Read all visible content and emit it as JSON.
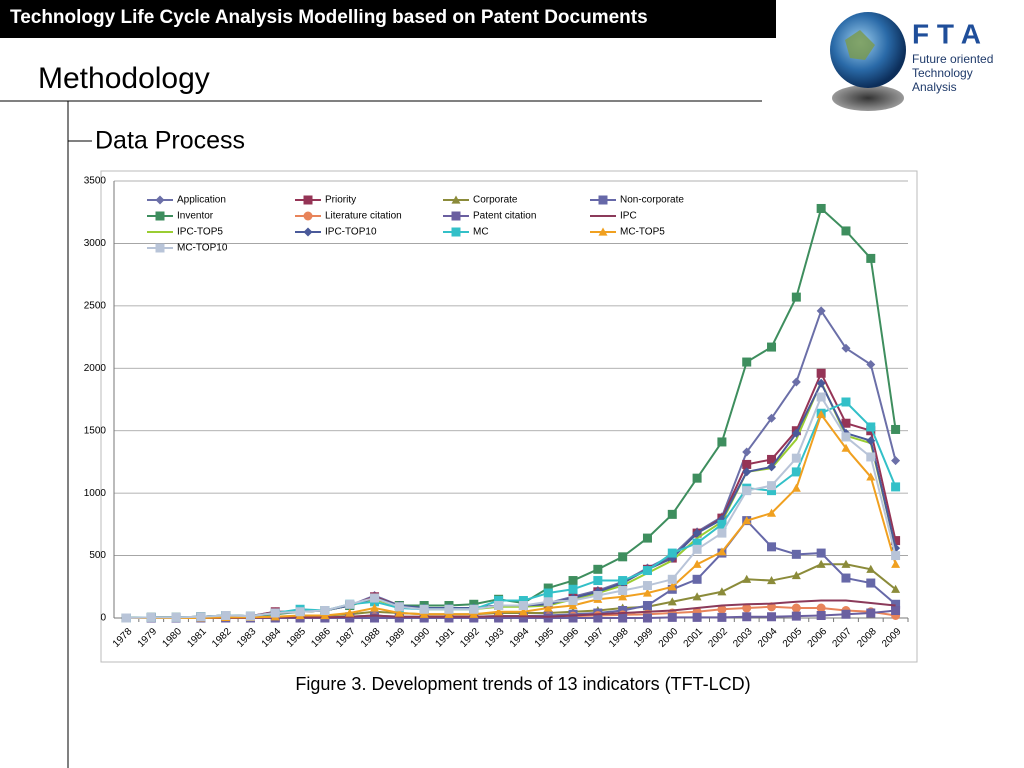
{
  "header": {
    "title": "Technology Life Cycle Analysis Modelling based on Patent Documents",
    "section": "Methodology",
    "subsection": "Data Process"
  },
  "logo": {
    "acronym": "F T A",
    "lines": [
      "Future oriented",
      "Technology",
      "Analysis"
    ]
  },
  "caption": "Figure 3. Development trends of 13 indicators (TFT-LCD)",
  "chart_data": {
    "type": "line",
    "grid": true,
    "legend": "top",
    "categories": [
      "1978",
      "1979",
      "1980",
      "1981",
      "1982",
      "1983",
      "1984",
      "1985",
      "1986",
      "1987",
      "1988",
      "1989",
      "1990",
      "1991",
      "1992",
      "1993",
      "1994",
      "1995",
      "1996",
      "1997",
      "1998",
      "1999",
      "2000",
      "2001",
      "2002",
      "2003",
      "2004",
      "2005",
      "2006",
      "2007",
      "2008",
      "2009"
    ],
    "ylim": [
      0,
      3500
    ],
    "yticks": [
      0,
      500,
      1000,
      1500,
      2000,
      2500,
      3000,
      3500
    ],
    "series": [
      {
        "name": "Application",
        "color": "#6b6fa8",
        "marker": "diamond",
        "values": [
          0,
          5,
          5,
          10,
          20,
          15,
          50,
          50,
          60,
          100,
          180,
          100,
          80,
          80,
          80,
          100,
          100,
          120,
          170,
          220,
          290,
          400,
          500,
          690,
          810,
          1330,
          1600,
          1890,
          2460,
          2160,
          2030,
          1260
        ]
      },
      {
        "name": "Priority",
        "color": "#953456",
        "marker": "square",
        "values": [
          0,
          5,
          5,
          10,
          20,
          15,
          50,
          50,
          60,
          100,
          170,
          100,
          80,
          80,
          80,
          100,
          100,
          110,
          160,
          210,
          280,
          390,
          480,
          680,
          800,
          1230,
          1270,
          1500,
          1960,
          1560,
          1500,
          620
        ]
      },
      {
        "name": "Corporate",
        "color": "#8b8b3a",
        "marker": "triangle",
        "values": [
          0,
          0,
          0,
          0,
          5,
          5,
          10,
          10,
          20,
          30,
          50,
          40,
          30,
          30,
          30,
          40,
          40,
          40,
          50,
          60,
          80,
          90,
          130,
          170,
          210,
          310,
          300,
          340,
          430,
          430,
          390,
          230
        ]
      },
      {
        "name": "Non-corporate",
        "color": "#6668a8",
        "marker": "square",
        "values": [
          0,
          0,
          0,
          0,
          0,
          0,
          5,
          5,
          5,
          10,
          20,
          10,
          10,
          10,
          10,
          15,
          15,
          20,
          30,
          40,
          60,
          100,
          230,
          310,
          520,
          780,
          570,
          510,
          520,
          320,
          280,
          110
        ]
      },
      {
        "name": "Inventor",
        "color": "#3e8e5e",
        "marker": "square",
        "values": [
          0,
          5,
          5,
          10,
          20,
          15,
          30,
          50,
          60,
          100,
          160,
          100,
          100,
          100,
          110,
          150,
          120,
          240,
          300,
          390,
          490,
          640,
          830,
          1120,
          1410,
          2050,
          2170,
          2570,
          3280,
          3100,
          2880,
          1510
        ]
      },
      {
        "name": "Literature citation",
        "color": "#e8845a",
        "marker": "circle",
        "values": [
          0,
          0,
          0,
          0,
          0,
          0,
          0,
          5,
          5,
          5,
          10,
          5,
          5,
          5,
          5,
          5,
          5,
          10,
          15,
          20,
          25,
          30,
          40,
          50,
          70,
          80,
          90,
          80,
          80,
          60,
          50,
          20
        ]
      },
      {
        "name": "Patent citation",
        "color": "#6a5fa0",
        "marker": "square",
        "values": [
          0,
          0,
          0,
          0,
          0,
          0,
          0,
          0,
          0,
          0,
          0,
          0,
          0,
          0,
          0,
          0,
          0,
          0,
          0,
          0,
          0,
          0,
          5,
          5,
          5,
          10,
          10,
          15,
          20,
          30,
          40,
          60
        ]
      },
      {
        "name": "IPC",
        "color": "#8b3a5a",
        "marker": "none",
        "values": [
          0,
          0,
          0,
          0,
          0,
          0,
          5,
          5,
          5,
          10,
          20,
          10,
          10,
          10,
          10,
          15,
          15,
          10,
          20,
          30,
          40,
          50,
          60,
          80,
          100,
          110,
          115,
          130,
          140,
          140,
          120,
          100
        ]
      },
      {
        "name": "IPC-TOP5",
        "color": "#9acd32",
        "marker": "none",
        "values": [
          0,
          5,
          5,
          10,
          20,
          15,
          40,
          50,
          60,
          100,
          150,
          90,
          70,
          70,
          70,
          90,
          90,
          100,
          150,
          200,
          260,
          360,
          460,
          640,
          770,
          1170,
          1200,
          1430,
          1890,
          1460,
          1400,
          560
        ]
      },
      {
        "name": "IPC-TOP10",
        "color": "#4a5a9a",
        "marker": "diamond",
        "values": [
          0,
          5,
          5,
          10,
          20,
          15,
          40,
          50,
          60,
          100,
          160,
          100,
          80,
          80,
          80,
          100,
          100,
          110,
          160,
          210,
          280,
          390,
          480,
          680,
          790,
          1170,
          1210,
          1480,
          1880,
          1480,
          1420,
          560
        ]
      },
      {
        "name": "MC",
        "color": "#33c0c8",
        "marker": "square",
        "values": [
          0,
          5,
          5,
          10,
          20,
          15,
          40,
          70,
          60,
          110,
          130,
          80,
          70,
          70,
          70,
          140,
          140,
          200,
          230,
          300,
          300,
          380,
          520,
          600,
          750,
          1040,
          1020,
          1170,
          1640,
          1730,
          1530,
          1050
        ]
      },
      {
        "name": "MC-TOP5",
        "color": "#f0a020",
        "marker": "triangle",
        "values": [
          0,
          0,
          0,
          0,
          5,
          5,
          10,
          20,
          20,
          40,
          80,
          40,
          30,
          30,
          30,
          50,
          50,
          80,
          100,
          150,
          170,
          200,
          250,
          430,
          530,
          780,
          840,
          1040,
          1630,
          1360,
          1130,
          430
        ]
      },
      {
        "name": "MC-TOP10",
        "color": "#b8c4d8",
        "marker": "square",
        "values": [
          0,
          5,
          5,
          10,
          20,
          15,
          40,
          50,
          60,
          110,
          160,
          90,
          70,
          70,
          70,
          100,
          100,
          130,
          140,
          180,
          220,
          260,
          310,
          550,
          680,
          1020,
          1060,
          1280,
          1770,
          1450,
          1290,
          500
        ]
      }
    ]
  }
}
